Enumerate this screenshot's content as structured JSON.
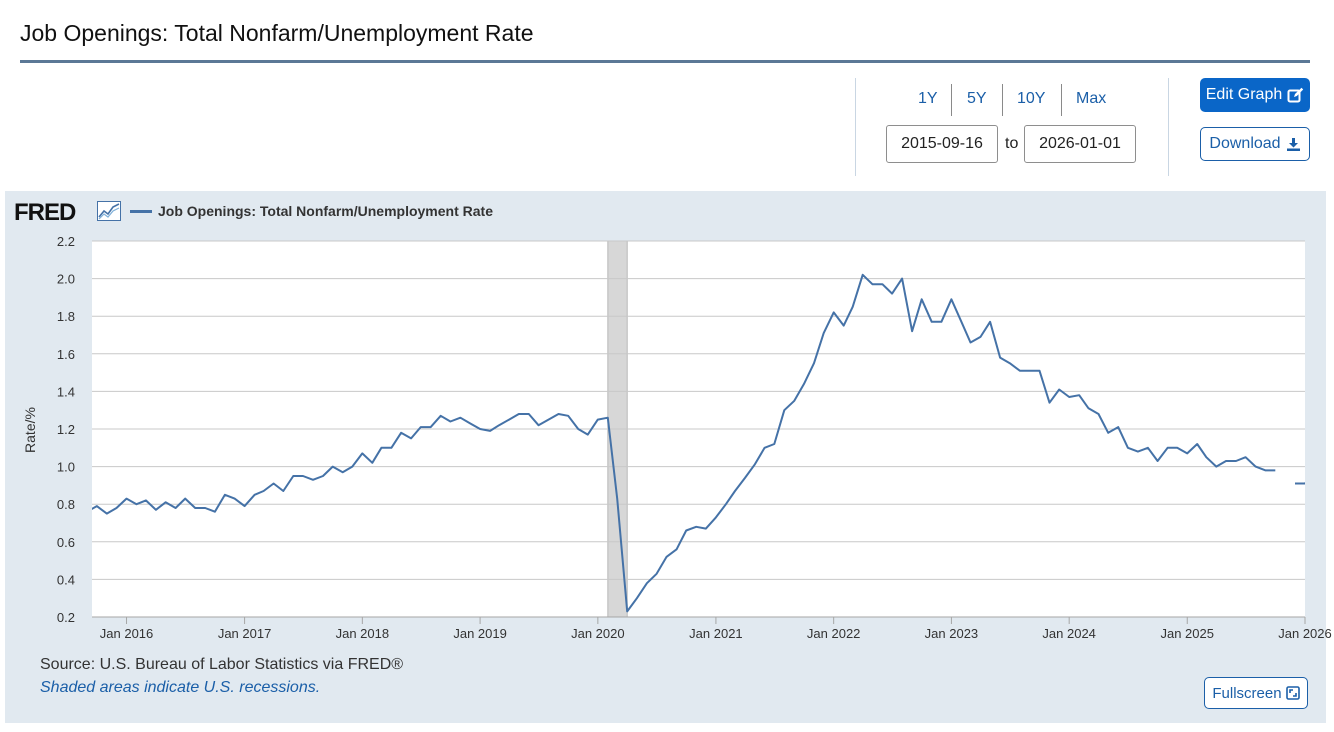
{
  "page_title": "Job Openings: Total Nonfarm/Unemployment Rate",
  "range_links": [
    "1Y",
    "5Y",
    "10Y",
    "Max"
  ],
  "date_from": "2015-09-16",
  "date_to": "2026-01-01",
  "to_label": "to",
  "edit_graph_label": "Edit Graph",
  "download_label": "Download",
  "fred_logo": "FRED",
  "source_text": "Source: U.S. Bureau of Labor Statistics via FRED®",
  "recession_note": "Shaded areas indicate U.S. recessions.",
  "fullscreen_label": "Fullscreen",
  "icons": {
    "edit": "edit-icon",
    "download": "download-icon",
    "fullscreen": "fullscreen-icon",
    "logo_chart": "line-chart-icon"
  },
  "colors": {
    "accent": "#0a66c8",
    "series": "#4572a7",
    "panel_bg": "#e1e9f0",
    "recession": "#d7d7d7"
  },
  "chart_data": {
    "type": "line",
    "title": "",
    "xlabel": "",
    "ylabel": "Rate/%",
    "ylim": [
      0.2,
      2.2
    ],
    "xlim": [
      "2015-09-16",
      "2026-01-01"
    ],
    "yticks": [
      "0.2",
      "0.4",
      "0.6",
      "0.8",
      "1.0",
      "1.2",
      "1.4",
      "1.6",
      "1.8",
      "2.0",
      "2.2"
    ],
    "xticks": [
      {
        "date": "2016-01-01",
        "label": "Jan 2016"
      },
      {
        "date": "2017-01-01",
        "label": "Jan 2017"
      },
      {
        "date": "2018-01-01",
        "label": "Jan 2018"
      },
      {
        "date": "2019-01-01",
        "label": "Jan 2019"
      },
      {
        "date": "2020-01-01",
        "label": "Jan 2020"
      },
      {
        "date": "2021-01-01",
        "label": "Jan 2021"
      },
      {
        "date": "2022-01-01",
        "label": "Jan 2022"
      },
      {
        "date": "2023-01-01",
        "label": "Jan 2023"
      },
      {
        "date": "2024-01-01",
        "label": "Jan 2024"
      },
      {
        "date": "2025-01-01",
        "label": "Jan 2025"
      },
      {
        "date": "2026-01-01",
        "label": "Jan 2026"
      }
    ],
    "grid": true,
    "legend": "top-left",
    "recessions": [
      {
        "start": "2020-02-01",
        "end": "2020-04-01"
      }
    ],
    "series": [
      {
        "name": "Job Openings: Total Nonfarm/Unemployment Rate",
        "color": "#4572a7",
        "points": [
          [
            "2015-09-01",
            0.76
          ],
          [
            "2015-10-01",
            0.79
          ],
          [
            "2015-11-01",
            0.75
          ],
          [
            "2015-12-01",
            0.78
          ],
          [
            "2016-01-01",
            0.83
          ],
          [
            "2016-02-01",
            0.8
          ],
          [
            "2016-03-01",
            0.82
          ],
          [
            "2016-04-01",
            0.77
          ],
          [
            "2016-05-01",
            0.81
          ],
          [
            "2016-06-01",
            0.78
          ],
          [
            "2016-07-01",
            0.83
          ],
          [
            "2016-08-01",
            0.78
          ],
          [
            "2016-09-01",
            0.78
          ],
          [
            "2016-10-01",
            0.76
          ],
          [
            "2016-11-01",
            0.85
          ],
          [
            "2016-12-01",
            0.83
          ],
          [
            "2017-01-01",
            0.79
          ],
          [
            "2017-02-01",
            0.85
          ],
          [
            "2017-03-01",
            0.87
          ],
          [
            "2017-04-01",
            0.91
          ],
          [
            "2017-05-01",
            0.87
          ],
          [
            "2017-06-01",
            0.95
          ],
          [
            "2017-07-01",
            0.95
          ],
          [
            "2017-08-01",
            0.93
          ],
          [
            "2017-09-01",
            0.95
          ],
          [
            "2017-10-01",
            1.0
          ],
          [
            "2017-11-01",
            0.97
          ],
          [
            "2017-12-01",
            1.0
          ],
          [
            "2018-01-01",
            1.07
          ],
          [
            "2018-02-01",
            1.02
          ],
          [
            "2018-03-01",
            1.1
          ],
          [
            "2018-04-01",
            1.1
          ],
          [
            "2018-05-01",
            1.18
          ],
          [
            "2018-06-01",
            1.15
          ],
          [
            "2018-07-01",
            1.21
          ],
          [
            "2018-08-01",
            1.21
          ],
          [
            "2018-09-01",
            1.27
          ],
          [
            "2018-10-01",
            1.24
          ],
          [
            "2018-11-01",
            1.26
          ],
          [
            "2018-12-01",
            1.23
          ],
          [
            "2019-01-01",
            1.2
          ],
          [
            "2019-02-01",
            1.19
          ],
          [
            "2019-03-01",
            1.22
          ],
          [
            "2019-04-01",
            1.25
          ],
          [
            "2019-05-01",
            1.28
          ],
          [
            "2019-06-01",
            1.28
          ],
          [
            "2019-07-01",
            1.22
          ],
          [
            "2019-08-01",
            1.25
          ],
          [
            "2019-09-01",
            1.28
          ],
          [
            "2019-10-01",
            1.27
          ],
          [
            "2019-11-01",
            1.2
          ],
          [
            "2019-12-01",
            1.17
          ],
          [
            "2020-01-01",
            1.25
          ],
          [
            "2020-02-01",
            1.26
          ],
          [
            "2020-03-01",
            0.83
          ],
          [
            "2020-04-01",
            0.23
          ],
          [
            "2020-05-01",
            0.3
          ],
          [
            "2020-06-01",
            0.38
          ],
          [
            "2020-07-01",
            0.43
          ],
          [
            "2020-08-01",
            0.52
          ],
          [
            "2020-09-01",
            0.56
          ],
          [
            "2020-10-01",
            0.66
          ],
          [
            "2020-11-01",
            0.68
          ],
          [
            "2020-12-01",
            0.67
          ],
          [
            "2021-01-01",
            0.73
          ],
          [
            "2021-02-01",
            0.8
          ],
          [
            "2021-03-01",
            0.87
          ],
          [
            "2021-04-01",
            0.94
          ],
          [
            "2021-05-01",
            1.01
          ],
          [
            "2021-06-01",
            1.1
          ],
          [
            "2021-07-01",
            1.12
          ],
          [
            "2021-08-01",
            1.3
          ],
          [
            "2021-09-01",
            1.35
          ],
          [
            "2021-10-01",
            1.44
          ],
          [
            "2021-11-01",
            1.55
          ],
          [
            "2021-12-01",
            1.71
          ],
          [
            "2022-01-01",
            1.82
          ],
          [
            "2022-02-01",
            1.75
          ],
          [
            "2022-03-01",
            1.85
          ],
          [
            "2022-04-01",
            2.02
          ],
          [
            "2022-05-01",
            1.97
          ],
          [
            "2022-06-01",
            1.97
          ],
          [
            "2022-07-01",
            1.92
          ],
          [
            "2022-08-01",
            2.0
          ],
          [
            "2022-09-01",
            1.72
          ],
          [
            "2022-10-01",
            1.89
          ],
          [
            "2022-11-01",
            1.77
          ],
          [
            "2022-12-01",
            1.77
          ],
          [
            "2023-01-01",
            1.89
          ],
          [
            "2023-02-01",
            1.77
          ],
          [
            "2023-03-01",
            1.66
          ],
          [
            "2023-04-01",
            1.69
          ],
          [
            "2023-05-01",
            1.77
          ],
          [
            "2023-06-01",
            1.58
          ],
          [
            "2023-07-01",
            1.55
          ],
          [
            "2023-08-01",
            1.51
          ],
          [
            "2023-09-01",
            1.51
          ],
          [
            "2023-10-01",
            1.51
          ],
          [
            "2023-11-01",
            1.34
          ],
          [
            "2023-12-01",
            1.41
          ],
          [
            "2024-01-01",
            1.37
          ],
          [
            "2024-02-01",
            1.38
          ],
          [
            "2024-03-01",
            1.31
          ],
          [
            "2024-04-01",
            1.28
          ],
          [
            "2024-05-01",
            1.18
          ],
          [
            "2024-06-01",
            1.21
          ],
          [
            "2024-07-01",
            1.1
          ],
          [
            "2024-08-01",
            1.08
          ],
          [
            "2024-09-01",
            1.1
          ],
          [
            "2024-10-01",
            1.03
          ],
          [
            "2024-11-01",
            1.1
          ],
          [
            "2024-12-01",
            1.1
          ],
          [
            "2025-01-01",
            1.07
          ],
          [
            "2025-02-01",
            1.12
          ],
          [
            "2025-03-01",
            1.05
          ],
          [
            "2025-04-01",
            1.0
          ],
          [
            "2025-05-01",
            1.03
          ],
          [
            "2025-06-01",
            1.03
          ],
          [
            "2025-07-01",
            1.05
          ],
          [
            "2025-08-01",
            1.0
          ],
          [
            "2025-09-01",
            0.98
          ],
          [
            "2025-10-01",
            0.98
          ],
          [
            "2025-11-01",
            null
          ],
          [
            "2025-12-01",
            0.91
          ],
          [
            "2026-01-01",
            0.91
          ],
          [
            "2026-02-01",
            0.97
          ]
        ]
      }
    ]
  }
}
